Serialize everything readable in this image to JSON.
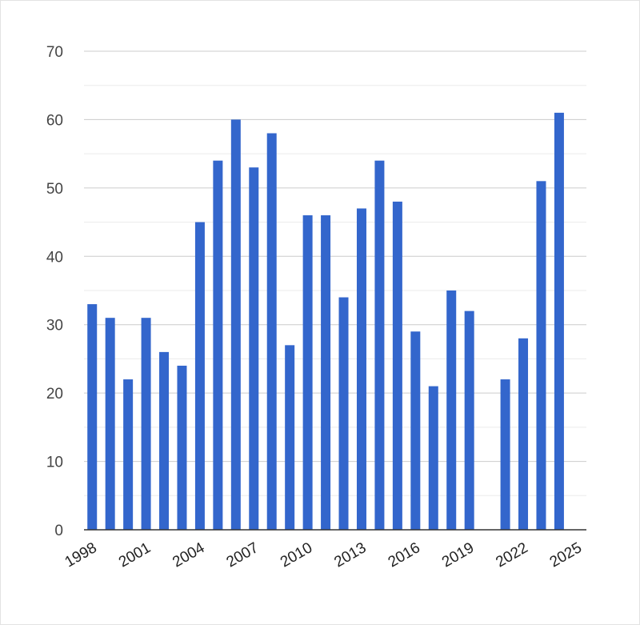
{
  "chart_data": {
    "type": "bar",
    "title": "",
    "xlabel": "",
    "ylabel": "",
    "categories": [
      "1998",
      "1999",
      "2000",
      "2001",
      "2002",
      "2003",
      "2004",
      "2005",
      "2006",
      "2007",
      "2008",
      "2009",
      "2010",
      "2011",
      "2012",
      "2013",
      "2014",
      "2015",
      "2016",
      "2017",
      "2018",
      "2019",
      "2020",
      "2021",
      "2022",
      "2023",
      "2024",
      "2025"
    ],
    "values": [
      33,
      31,
      22,
      31,
      26,
      24,
      45,
      54,
      60,
      53,
      58,
      27,
      46,
      46,
      34,
      47,
      54,
      48,
      29,
      21,
      35,
      32,
      null,
      22,
      28,
      51,
      61,
      null
    ],
    "x_tick_labels": [
      "1998",
      "2001",
      "2004",
      "2007",
      "2010",
      "2013",
      "2016",
      "2019",
      "2022",
      "2025"
    ],
    "y_ticks": [
      0,
      10,
      20,
      30,
      40,
      50,
      60,
      70
    ],
    "ylim": [
      0,
      70
    ],
    "grid": true,
    "legend": "none",
    "bar_color": "#3366cc",
    "gridline_color": "#cccccc",
    "minor_gridline_color": "#ebebeb",
    "baseline_color": "#333333"
  }
}
